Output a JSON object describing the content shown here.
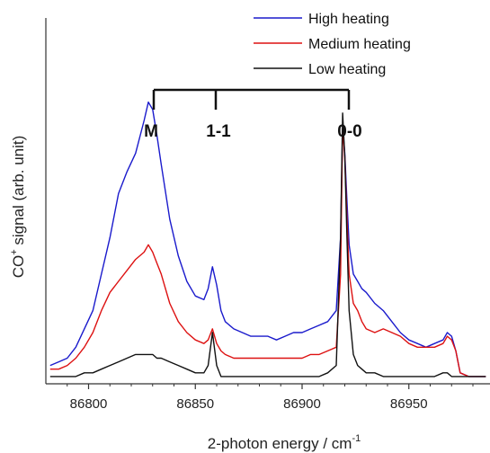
{
  "chart_data": {
    "type": "line",
    "xlabel_text": "2-photon energy / cm",
    "xlabel_sup": "-1",
    "ylabel_pre": "CO",
    "ylabel_sup": "+",
    "ylabel_post": " signal (arb. unit)",
    "xlim": [
      86780,
      86988
    ],
    "ylim": [
      0,
      1
    ],
    "x_ticks": [
      86800,
      86850,
      86900,
      86950
    ],
    "legend_placement": "top-right",
    "grid": false,
    "annotations": [
      {
        "text": "M",
        "x": 86830
      },
      {
        "text": "1-1",
        "x": 86860
      },
      {
        "text": "0-0",
        "x": 86922
      }
    ],
    "series": [
      {
        "name": "High heating",
        "color": "#1a1acc",
        "x": [
          86782,
          86786,
          86790,
          86794,
          86798,
          86802,
          86806,
          86810,
          86814,
          86818,
          86822,
          86826,
          86828,
          86830,
          86832,
          86834,
          86838,
          86842,
          86846,
          86850,
          86854,
          86856,
          86858,
          86860,
          86862,
          86864,
          86868,
          86872,
          86876,
          86880,
          86884,
          86888,
          86892,
          86896,
          86900,
          86904,
          86908,
          86912,
          86916,
          86918,
          86919,
          86920,
          86921,
          86922,
          86924,
          86926,
          86928,
          86930,
          86934,
          86938,
          86942,
          86946,
          86950,
          86954,
          86958,
          86962,
          86966,
          86968,
          86970,
          86972,
          86974,
          86978,
          86982,
          86986
        ],
        "y": [
          0.05,
          0.06,
          0.07,
          0.1,
          0.15,
          0.2,
          0.3,
          0.4,
          0.52,
          0.58,
          0.63,
          0.72,
          0.77,
          0.75,
          0.68,
          0.6,
          0.45,
          0.35,
          0.28,
          0.24,
          0.23,
          0.26,
          0.32,
          0.27,
          0.2,
          0.17,
          0.15,
          0.14,
          0.13,
          0.13,
          0.13,
          0.12,
          0.13,
          0.14,
          0.14,
          0.15,
          0.16,
          0.17,
          0.2,
          0.4,
          0.7,
          0.63,
          0.5,
          0.38,
          0.3,
          0.28,
          0.26,
          0.25,
          0.22,
          0.2,
          0.17,
          0.14,
          0.12,
          0.11,
          0.1,
          0.11,
          0.12,
          0.14,
          0.13,
          0.09,
          0.03,
          0.02,
          0.02,
          0.02
        ]
      },
      {
        "name": "Medium heating",
        "color": "#dd1111",
        "x": [
          86782,
          86786,
          86790,
          86794,
          86798,
          86802,
          86806,
          86810,
          86814,
          86818,
          86822,
          86826,
          86828,
          86830,
          86832,
          86834,
          86838,
          86842,
          86846,
          86850,
          86854,
          86856,
          86858,
          86860,
          86862,
          86864,
          86868,
          86872,
          86876,
          86880,
          86884,
          86888,
          86892,
          86896,
          86900,
          86904,
          86908,
          86912,
          86916,
          86918,
          86919,
          86920,
          86921,
          86922,
          86924,
          86926,
          86928,
          86930,
          86934,
          86938,
          86942,
          86946,
          86950,
          86954,
          86958,
          86962,
          86966,
          86968,
          86970,
          86972,
          86974,
          86978,
          86982,
          86986
        ],
        "y": [
          0.04,
          0.04,
          0.05,
          0.07,
          0.1,
          0.14,
          0.2,
          0.25,
          0.28,
          0.31,
          0.34,
          0.36,
          0.38,
          0.36,
          0.33,
          0.3,
          0.22,
          0.17,
          0.14,
          0.12,
          0.11,
          0.12,
          0.15,
          0.11,
          0.09,
          0.08,
          0.07,
          0.07,
          0.07,
          0.07,
          0.07,
          0.07,
          0.07,
          0.07,
          0.07,
          0.08,
          0.08,
          0.09,
          0.1,
          0.3,
          0.7,
          0.62,
          0.45,
          0.3,
          0.22,
          0.2,
          0.17,
          0.15,
          0.14,
          0.15,
          0.14,
          0.13,
          0.11,
          0.1,
          0.1,
          0.1,
          0.11,
          0.13,
          0.12,
          0.09,
          0.03,
          0.02,
          0.02,
          0.02
        ]
      },
      {
        "name": "Low heating",
        "color": "#111111",
        "x": [
          86782,
          86786,
          86790,
          86794,
          86798,
          86802,
          86806,
          86810,
          86814,
          86818,
          86822,
          86826,
          86828,
          86830,
          86832,
          86834,
          86838,
          86842,
          86846,
          86850,
          86854,
          86856,
          86858,
          86860,
          86862,
          86864,
          86868,
          86872,
          86876,
          86880,
          86884,
          86888,
          86892,
          86896,
          86900,
          86904,
          86908,
          86912,
          86916,
          86918,
          86919,
          86920,
          86921,
          86922,
          86924,
          86926,
          86928,
          86930,
          86934,
          86938,
          86942,
          86946,
          86950,
          86954,
          86958,
          86962,
          86966,
          86968,
          86970,
          86972,
          86974,
          86978,
          86982,
          86986
        ],
        "y": [
          0.02,
          0.02,
          0.02,
          0.02,
          0.03,
          0.03,
          0.04,
          0.05,
          0.06,
          0.07,
          0.08,
          0.08,
          0.08,
          0.08,
          0.07,
          0.07,
          0.06,
          0.05,
          0.04,
          0.03,
          0.03,
          0.05,
          0.14,
          0.05,
          0.02,
          0.02,
          0.02,
          0.02,
          0.02,
          0.02,
          0.02,
          0.02,
          0.02,
          0.02,
          0.02,
          0.02,
          0.02,
          0.03,
          0.05,
          0.4,
          0.74,
          0.62,
          0.4,
          0.2,
          0.08,
          0.05,
          0.04,
          0.03,
          0.03,
          0.02,
          0.02,
          0.02,
          0.02,
          0.02,
          0.02,
          0.02,
          0.03,
          0.03,
          0.02,
          0.02,
          0.02,
          0.02,
          0.02,
          0.02
        ]
      }
    ]
  }
}
